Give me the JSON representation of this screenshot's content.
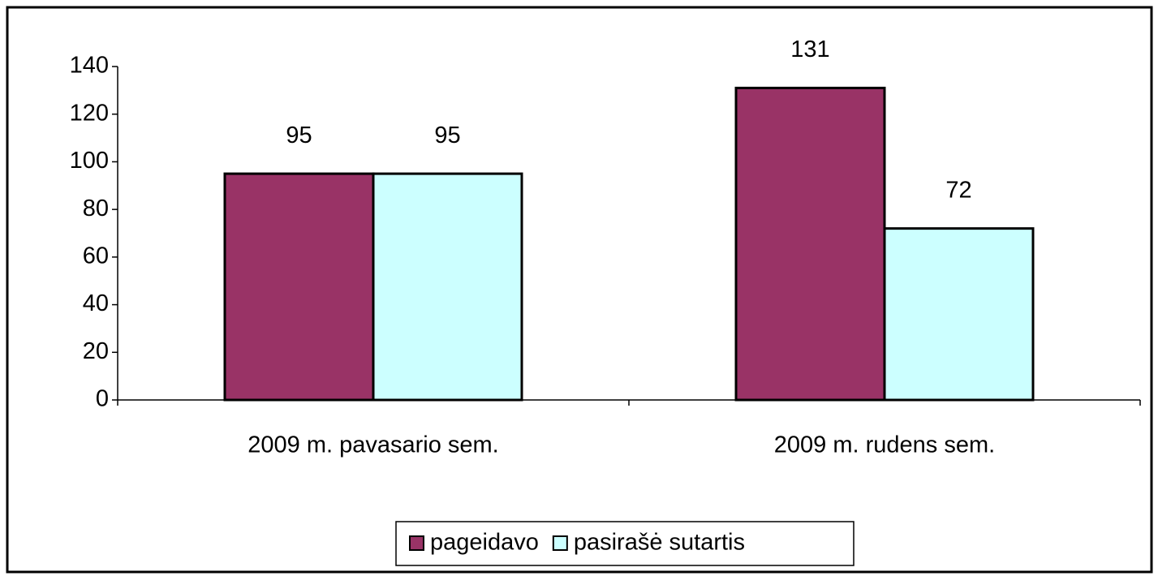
{
  "chart_data": {
    "type": "bar",
    "categories": [
      "2009 m. pavasario sem.",
      "2009 m. rudens sem."
    ],
    "series": [
      {
        "name": "pageidavo",
        "color": "#993366",
        "values": [
          95,
          131
        ]
      },
      {
        "name": "pasirašė sutartis",
        "color": "#ccffff",
        "values": [
          95,
          72
        ]
      }
    ],
    "ylim": [
      0,
      140
    ],
    "yticks": [
      0,
      20,
      40,
      60,
      80,
      100,
      120,
      140
    ],
    "legend": "bottom"
  }
}
